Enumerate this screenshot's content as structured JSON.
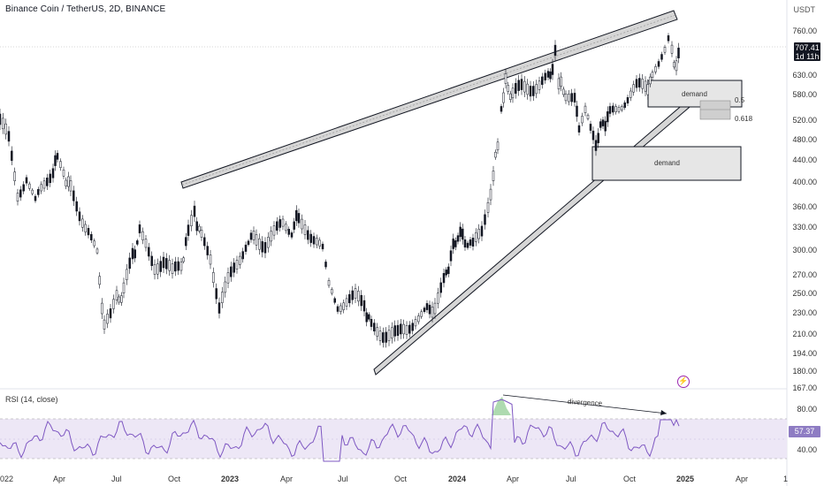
{
  "header": {
    "title": "Binance Coin / TetherUS, 2D, BINANCE",
    "currency": "USDT"
  },
  "price_axis": [
    "760.00",
    "630.00",
    "580.00",
    "520.00",
    "480.00",
    "440.00",
    "400.00",
    "360.00",
    "330.00",
    "300.00",
    "270.00",
    "250.00",
    "230.00",
    "210.00",
    "194.00",
    "180.00",
    "167.00"
  ],
  "last_price": {
    "value": "707.41",
    "countdown": "1d 11h"
  },
  "rsi": {
    "title": "RSI (14, close)",
    "levels": [
      "80.00",
      "40.00"
    ],
    "value": "57.37"
  },
  "time_axis": [
    "022",
    "Apr",
    "Jul",
    "Oct",
    "2023",
    "Apr",
    "Jul",
    "Oct",
    "2024",
    "Apr",
    "Jul",
    "Oct",
    "2025",
    "Apr",
    "1"
  ],
  "annotations": {
    "demand_upper": "demand",
    "demand_lower": "demand",
    "fib_05": "0.5",
    "fib_0618": "0.618",
    "divergence": "divergence"
  },
  "icons": {
    "alert": "lightning-icon"
  },
  "colors": {
    "rsi_line": "#7e57c2",
    "rsi_band": "#ede7f6",
    "candle": "#131722",
    "zone": "#e0e0e0"
  }
}
